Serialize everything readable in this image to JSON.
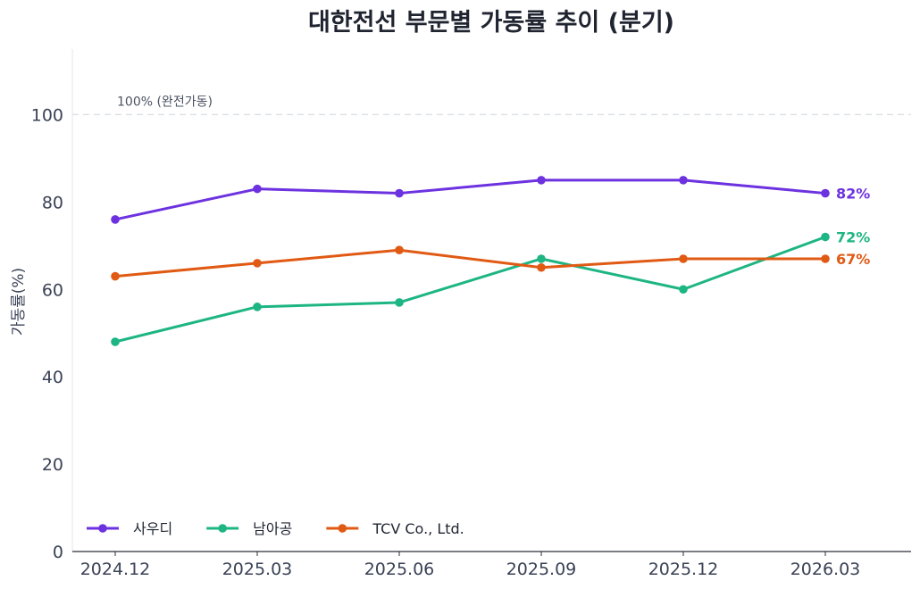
{
  "chart_data": {
    "type": "line",
    "title": "대한전선 부문별 가동률 추이 (분기)",
    "ylabel": "가동률(%)",
    "xlabel": "",
    "categories": [
      "2024.12",
      "2025.03",
      "2025.06",
      "2025.09",
      "2025.12",
      "2026.03"
    ],
    "ylim": [
      0,
      115
    ],
    "yticks": [
      0,
      20,
      40,
      60,
      80,
      100
    ],
    "grid": false,
    "legend_position": "bottom-left",
    "reference_line": {
      "value": 100,
      "label": "100% (완전가동)",
      "style": "dashed"
    },
    "series": [
      {
        "name": "사우디",
        "color": "#6d32e0",
        "values": [
          76,
          83,
          82,
          85,
          85,
          82
        ],
        "end_label": "82%"
      },
      {
        "name": "남아공",
        "color": "#1db583",
        "values": [
          48,
          56,
          57,
          67,
          60,
          72
        ],
        "end_label": "72%"
      },
      {
        "name": "TCV Co., Ltd.",
        "color": "#e05a14",
        "values": [
          63,
          66,
          69,
          65,
          67,
          67
        ],
        "end_label": "67%"
      }
    ]
  }
}
